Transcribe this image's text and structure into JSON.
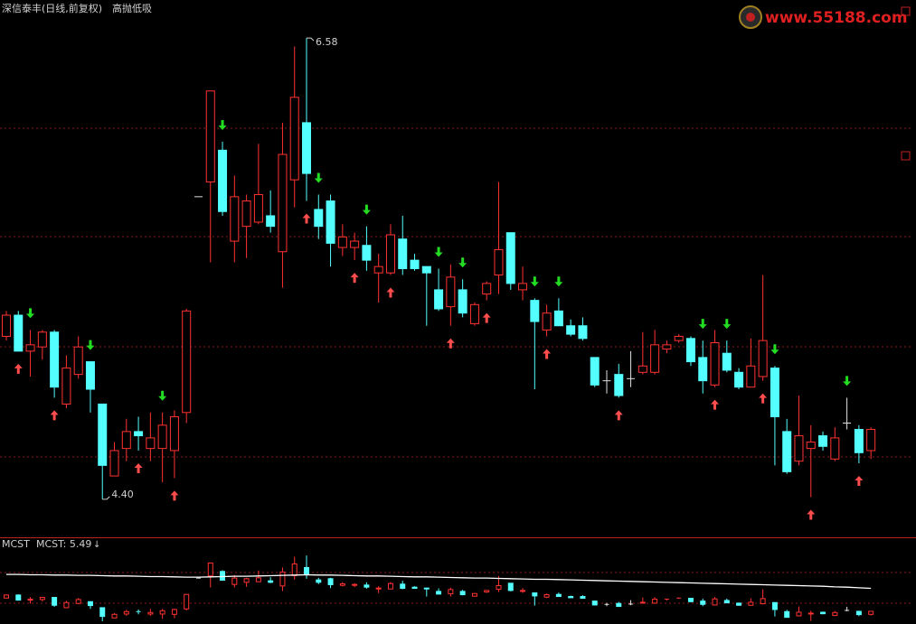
{
  "chart_data": {
    "type": "candlestick",
    "title": "深信泰丰(日线,前复权)",
    "subtitle": "高抛低吸",
    "watermark": "www.55188.com",
    "up_color": "#ff3232",
    "down_color": "#54ffff",
    "flat_color": "#e0e0e0",
    "ylim": [
      4.22,
      6.76
    ],
    "open": [
      5.17,
      5.27,
      5.1,
      5.12,
      5.19,
      4.85,
      4.99,
      5.05,
      4.85,
      4.51,
      4.64,
      4.72,
      4.64,
      4.64,
      4.63,
      4.81,
      5.83,
      5.9,
      6.05,
      5.62,
      5.69,
      5.71,
      5.74,
      5.57,
      5.91,
      6.18,
      5.77,
      5.81,
      5.59,
      5.59,
      5.6,
      5.47,
      5.47,
      5.63,
      5.53,
      5.5,
      5.39,
      5.31,
      5.39,
      5.23,
      5.37,
      5.46,
      5.66,
      5.39,
      5.34,
      5.2,
      5.29,
      5.22,
      5.22,
      5.07,
      4.96,
      4.99,
      4.97,
      5.0,
      5.0,
      5.11,
      5.15,
      5.16,
      5.07,
      4.94,
      5.09,
      5.0,
      4.93,
      4.98,
      5.02,
      4.72,
      4.58,
      4.64,
      4.7,
      4.59,
      4.76,
      4.73,
      4.63
    ],
    "high": [
      5.29,
      5.29,
      5.2,
      5.2,
      5.2,
      5.08,
      5.17,
      5.05,
      4.85,
      4.67,
      4.78,
      4.79,
      4.81,
      4.81,
      4.82,
      5.3,
      5.83,
      6.33,
      6.09,
      5.93,
      5.84,
      6.08,
      5.86,
      6.18,
      6.54,
      6.58,
      5.84,
      5.84,
      5.7,
      5.66,
      5.69,
      5.56,
      5.7,
      5.74,
      5.56,
      5.5,
      5.49,
      5.51,
      5.44,
      5.33,
      5.43,
      5.9,
      5.66,
      5.5,
      5.35,
      5.32,
      5.35,
      5.25,
      5.26,
      5.07,
      5.01,
      5.04,
      5.1,
      5.19,
      5.2,
      5.15,
      5.18,
      5.17,
      5.15,
      5.2,
      5.15,
      5.02,
      5.16,
      5.46,
      5.03,
      4.78,
      4.89,
      4.75,
      4.72,
      4.74,
      4.88,
      4.75,
      4.74
    ],
    "low": [
      5.15,
      5.1,
      4.98,
      5.06,
      4.88,
      4.83,
      4.97,
      4.81,
      4.4,
      4.51,
      4.58,
      4.63,
      4.58,
      4.48,
      4.5,
      4.76,
      5.83,
      5.52,
      5.74,
      5.52,
      5.54,
      5.7,
      5.66,
      5.4,
      5.78,
      5.81,
      5.63,
      5.5,
      5.55,
      5.53,
      5.48,
      5.33,
      5.46,
      5.46,
      5.48,
      5.22,
      5.29,
      5.22,
      5.26,
      5.22,
      5.34,
      5.37,
      5.39,
      5.34,
      4.92,
      5.17,
      5.22,
      5.17,
      5.15,
      4.93,
      4.9,
      4.88,
      4.93,
      4.99,
      4.99,
      5.09,
      5.14,
      5.03,
      4.9,
      4.93,
      5.0,
      4.92,
      4.93,
      4.96,
      4.56,
      4.52,
      4.56,
      4.41,
      4.63,
      4.58,
      4.73,
      4.57,
      4.59
    ],
    "close": [
      5.27,
      5.1,
      5.13,
      5.19,
      4.93,
      5.02,
      5.12,
      4.92,
      4.56,
      4.63,
      4.72,
      4.7,
      4.69,
      4.75,
      4.79,
      5.29,
      5.83,
      6.33,
      5.76,
      5.83,
      5.81,
      5.84,
      5.69,
      6.03,
      6.3,
      5.94,
      5.69,
      5.61,
      5.64,
      5.62,
      5.53,
      5.5,
      5.65,
      5.49,
      5.49,
      5.47,
      5.3,
      5.45,
      5.28,
      5.32,
      5.42,
      5.58,
      5.42,
      5.42,
      5.24,
      5.28,
      5.22,
      5.18,
      5.16,
      4.94,
      4.96,
      4.89,
      4.97,
      5.03,
      5.13,
      5.13,
      5.17,
      5.05,
      4.96,
      5.14,
      5.01,
      4.93,
      5.03,
      5.15,
      4.79,
      4.53,
      4.7,
      4.67,
      4.65,
      4.69,
      4.76,
      4.62,
      4.73
    ],
    "signals": [
      null,
      "buy",
      "sell",
      null,
      "buy",
      null,
      null,
      "sell",
      null,
      null,
      null,
      "buy",
      null,
      "sell",
      "buy",
      null,
      null,
      null,
      "sell",
      null,
      null,
      null,
      null,
      null,
      null,
      "buy",
      "sell",
      null,
      null,
      "buy",
      "sell",
      null,
      "buy",
      null,
      null,
      null,
      "sell",
      "buy",
      "sell",
      null,
      "buy",
      null,
      null,
      null,
      "sell",
      "buy",
      "sell",
      null,
      null,
      null,
      null,
      "buy",
      null,
      null,
      null,
      null,
      null,
      null,
      "sell",
      "buy",
      "sell",
      null,
      null,
      "buy",
      "sell",
      null,
      null,
      "buy",
      null,
      null,
      "sell",
      "buy",
      null
    ],
    "annotations": [
      {
        "value": 6.58,
        "label": "6.58",
        "of": "high"
      },
      {
        "value": 4.4,
        "label": "4.40",
        "of": "low"
      }
    ],
    "indicator": {
      "name": "MCST",
      "label": "MCST: 5.49",
      "color": "#ffffff",
      "ylim": [
        4.31,
        7.15
      ],
      "values": [
        5.95,
        5.95,
        5.94,
        5.94,
        5.93,
        5.93,
        5.92,
        5.92,
        5.91,
        5.9,
        5.9,
        5.89,
        5.88,
        5.88,
        5.87,
        5.86,
        5.86,
        5.87,
        5.88,
        5.89,
        5.89,
        5.9,
        5.91,
        5.92,
        5.93,
        5.94,
        5.93,
        5.93,
        5.92,
        5.91,
        5.9,
        5.9,
        5.89,
        5.88,
        5.87,
        5.87,
        5.86,
        5.85,
        5.84,
        5.83,
        5.83,
        5.82,
        5.81,
        5.8,
        5.79,
        5.79,
        5.78,
        5.77,
        5.76,
        5.75,
        5.74,
        5.73,
        5.72,
        5.71,
        5.7,
        5.69,
        5.68,
        5.67,
        5.66,
        5.65,
        5.64,
        5.63,
        5.62,
        5.61,
        5.6,
        5.59,
        5.58,
        5.57,
        5.56,
        5.54,
        5.53,
        5.51,
        5.49
      ]
    }
  }
}
